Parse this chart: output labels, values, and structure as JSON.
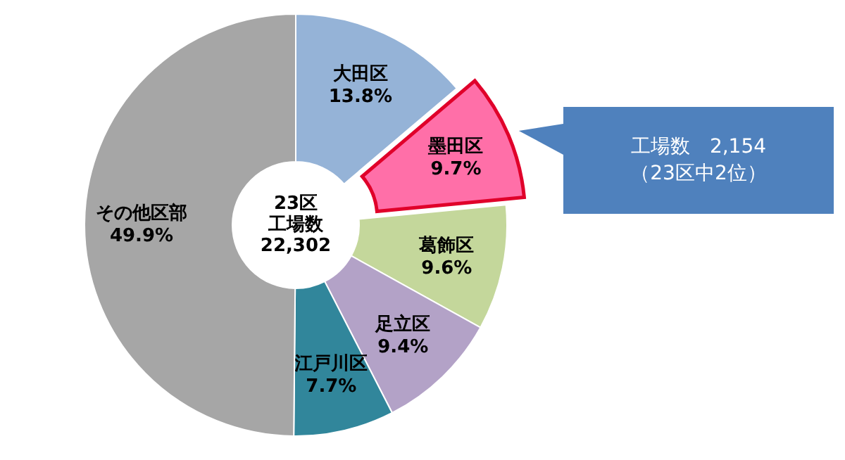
{
  "chart_data": {
    "type": "donut",
    "categories": [
      "大田区",
      "墨田区",
      "葛飾区",
      "足立区",
      "江戸川区",
      "その他区部"
    ],
    "values": [
      13.8,
      9.7,
      9.6,
      9.4,
      7.7,
      49.9
    ],
    "colors": [
      "#95b3d7",
      "#ff6fa8",
      "#c4d79b",
      "#b3a2c7",
      "#31869b",
      "#a6a6a6"
    ],
    "value_labels": [
      "13.8%",
      "9.7%",
      "9.6%",
      "9.4%",
      "7.7%",
      "49.9%"
    ],
    "annotations": [
      "23区",
      "工場数",
      "22,302",
      {
        "text": "工場数　2,154\n（23区中2位）",
        "x": "墨田区"
      }
    ]
  }
}
